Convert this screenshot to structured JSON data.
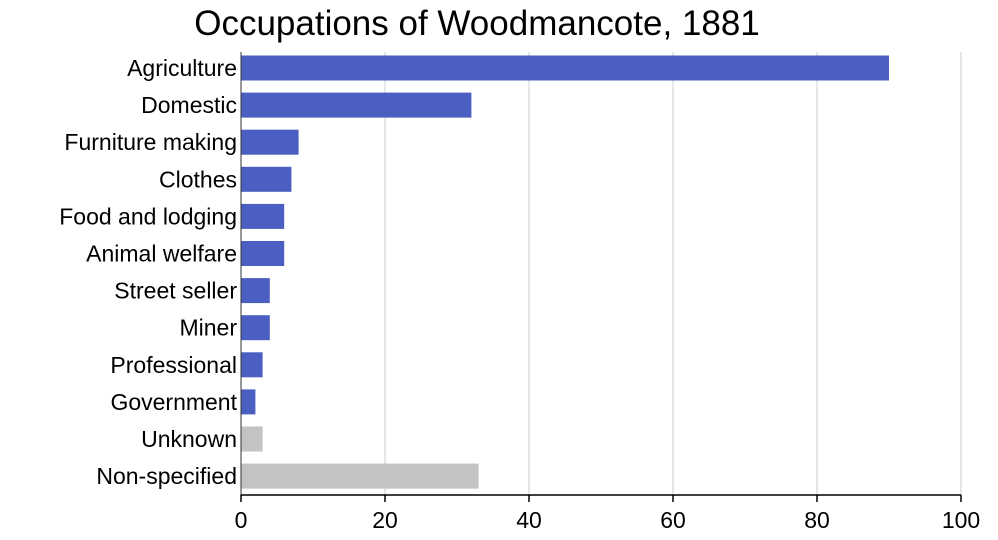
{
  "chart_data": {
    "type": "bar",
    "orientation": "horizontal",
    "title": "Occupations of Woodmancote, 1881",
    "xlabel": "",
    "ylabel": "",
    "xlim": [
      0,
      100
    ],
    "xticks": [
      "0",
      "20",
      "40",
      "60",
      "80",
      "100"
    ],
    "grid": "vertical",
    "categories": [
      "Agriculture",
      "Domestic",
      "Furniture making",
      "Clothes",
      "Food and lodging",
      "Animal welfare",
      "Street seller",
      "Miner",
      "Professional",
      "Government",
      "Unknown",
      "Non-specified"
    ],
    "values": [
      90,
      32,
      8,
      7,
      6,
      6,
      4,
      4,
      3,
      2,
      3,
      33
    ],
    "colors": [
      "#4a5fc1",
      "#4a5fc1",
      "#4a5fc1",
      "#4a5fc1",
      "#4a5fc1",
      "#4a5fc1",
      "#4a5fc1",
      "#4a5fc1",
      "#4a5fc1",
      "#4a5fc1",
      "#c3c3c3",
      "#c3c3c3"
    ]
  }
}
